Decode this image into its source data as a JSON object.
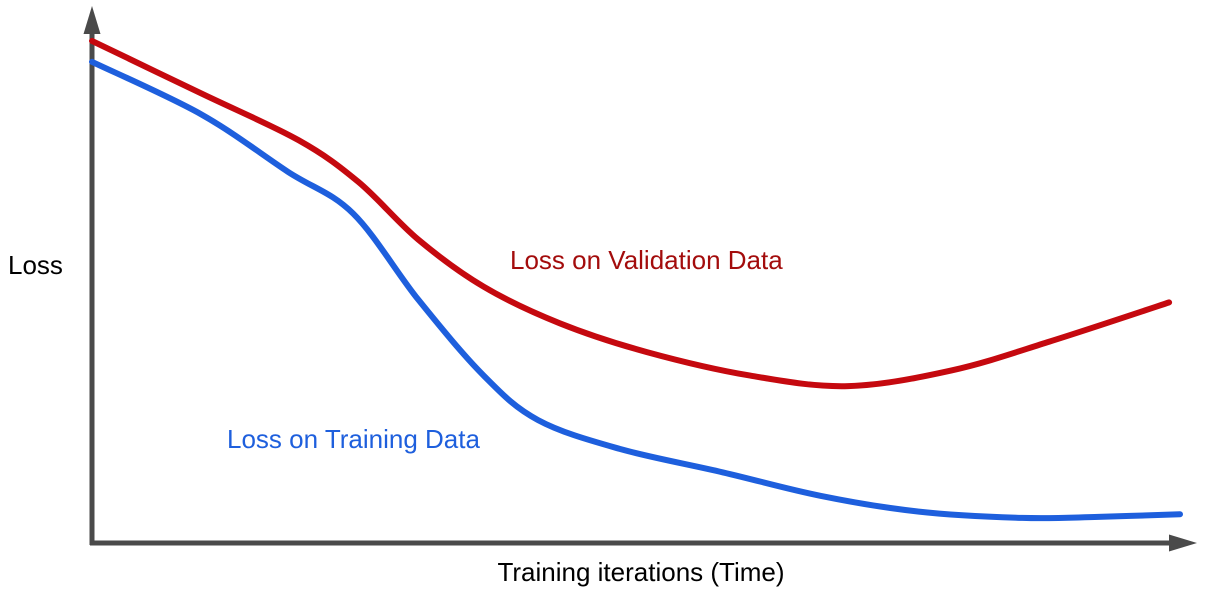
{
  "chart_data": {
    "type": "line",
    "title": "",
    "xlabel": "Training iterations (Time)",
    "ylabel": "Loss",
    "xlim": [
      0,
      100
    ],
    "ylim": [
      0,
      1
    ],
    "grid": false,
    "legend_position": "inline-annotations",
    "axis_color": "#4a4a4a",
    "text_color": "#000000",
    "series": [
      {
        "name": "Loss on Validation Data",
        "color": "#c5090f",
        "label_color": "#a30c0c",
        "points": [
          [
            0,
            0.96
          ],
          [
            10,
            0.86
          ],
          [
            19,
            0.77
          ],
          [
            24.5,
            0.69
          ],
          [
            30,
            0.58
          ],
          [
            36,
            0.49
          ],
          [
            43,
            0.42
          ],
          [
            51,
            0.365
          ],
          [
            60.5,
            0.32
          ],
          [
            69.5,
            0.3
          ],
          [
            79,
            0.33
          ],
          [
            88,
            0.385
          ],
          [
            99,
            0.46
          ]
        ]
      },
      {
        "name": "Loss on Training Data",
        "color": "#1e5fdd",
        "label_color": "#1e5fdd",
        "points": [
          [
            0,
            0.92
          ],
          [
            10,
            0.82
          ],
          [
            18,
            0.71
          ],
          [
            24,
            0.63
          ],
          [
            30,
            0.465
          ],
          [
            36,
            0.32
          ],
          [
            41,
            0.235
          ],
          [
            48.5,
            0.18
          ],
          [
            58,
            0.135
          ],
          [
            67,
            0.09
          ],
          [
            76,
            0.06
          ],
          [
            85.5,
            0.048
          ],
          [
            92.5,
            0.05
          ],
          [
            100,
            0.055
          ]
        ]
      }
    ]
  }
}
